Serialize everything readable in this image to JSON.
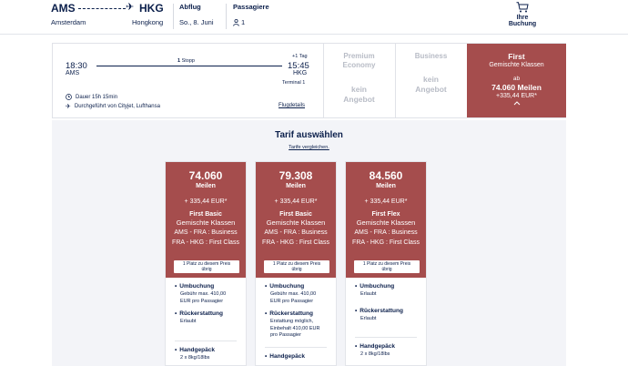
{
  "search": {
    "from_code": "AMS",
    "to_code": "HKG",
    "from_city": "Amsterdam",
    "to_city": "Hongkong",
    "departure_label": "Abflug",
    "departure_value": "So., 8. Juni",
    "passengers_label": "Passagiere",
    "passengers_value": "1",
    "booking_label": "Ihre Buchung"
  },
  "flight": {
    "dep_time": "18:30",
    "dep_code": "AMS",
    "arr_time": "15:45",
    "arr_code": "HKG",
    "plus_day": "+1 Tag",
    "stops_count": "1",
    "stops_label": "Stopp",
    "terminal": "Terminal 1",
    "duration": "Dauer 15h 15min",
    "operated_by": "Durchgeführt von Cityjet, Lufthansa",
    "details_link": "Flugdetails"
  },
  "cabins": {
    "premium": {
      "name_line1": "Premium",
      "name_line2": "Economy",
      "none_line1": "kein",
      "none_line2": "Angebot"
    },
    "business": {
      "name": "Business",
      "none_line1": "kein",
      "none_line2": "Angebot"
    },
    "first": {
      "name": "First",
      "sub": "Gemischte Klassen",
      "from": "ab",
      "miles": "74.060 Meilen",
      "eur": "+335,44 EUR*"
    }
  },
  "tariff": {
    "title": "Tarif auswählen",
    "compare_link": "Tarife vergleichen."
  },
  "cards": [
    {
      "miles": "74.060",
      "miles_label": "Meilen",
      "eur": "+ 335,44 EUR*",
      "name": "First Basic",
      "class": "Gemischte Klassen",
      "seg1": "AMS - FRA : Business",
      "seg2": "FRA - HKG : First Class",
      "badge_line1": "1 Platz zu diesem Preis",
      "badge_line2": "übrig",
      "rebooking_title": "Umbuchung",
      "rebooking_text": "Gebühr max. 410,00 EUR pro Passagier",
      "refund_title": "Rückerstattung",
      "refund_text": "Erlaubt",
      "baggage_title": "Handgepäck",
      "baggage_text": "2 x 8kg/18lbs"
    },
    {
      "miles": "79.308",
      "miles_label": "Meilen",
      "eur": "+ 335,44 EUR*",
      "name": "First Basic",
      "class": "Gemischte Klassen",
      "seg1": "AMS - FRA : Business",
      "seg2": "FRA - HKG : First Class",
      "badge_line1": "1 Platz zu diesem Preis",
      "badge_line2": "übrig",
      "rebooking_title": "Umbuchung",
      "rebooking_text": "Gebühr max. 410,00 EUR pro Passagier",
      "refund_title": "Rückerstattung",
      "refund_text": "Erstattung möglich, Einbehalt 410,00 EUR pro Passagier",
      "baggage_title": "Handgepäck",
      "baggage_text": ""
    },
    {
      "miles": "84.560",
      "miles_label": "Meilen",
      "eur": "+ 335,44 EUR*",
      "name": "First Flex",
      "class": "Gemischte Klassen",
      "seg1": "AMS - FRA : Business",
      "seg2": "FRA - HKG : First Class",
      "badge_line1": "1 Platz zu diesem Preis",
      "badge_line2": "übrig",
      "rebooking_title": "Umbuchung",
      "rebooking_text": "Erlaubt",
      "refund_title": "Rückerstattung",
      "refund_text": "Erlaubt",
      "baggage_title": "Handgepäck",
      "baggage_text": "2 x 8kg/18lbs"
    }
  ],
  "icons": {
    "plane": "plane-icon",
    "cart": "cart-icon",
    "person": "person-icon",
    "clock": "clock-icon",
    "operator": "plane-operator-icon",
    "chevron": "chevron-up-icon"
  },
  "colors": {
    "accent": "#a54d4d",
    "navy": "#0b1f4b",
    "panel_bg": "#f3f4f8"
  }
}
